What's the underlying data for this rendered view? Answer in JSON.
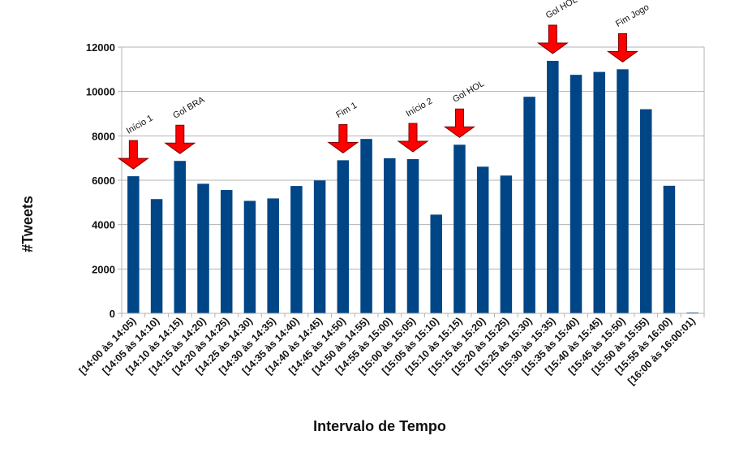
{
  "chart_data": {
    "type": "bar",
    "title": "",
    "xlabel": "Intervalo de Tempo",
    "ylabel": "#Tweets",
    "ylim": [
      0,
      12000
    ],
    "yticks": [
      0,
      2000,
      4000,
      6000,
      8000,
      10000,
      12000
    ],
    "grid": "horizontal",
    "legend": "none",
    "bar_color": "#004586",
    "annotation_color": "#ff0000",
    "categories": [
      "[14:00 às 14:05)",
      "[14:05 às 14:10)",
      "[14:10 às 14:15)",
      "[14:15 às 14:20)",
      "[14:20 às 14:25)",
      "[14:25 às 14:30)",
      "[14:30 às 14:35)",
      "[14:35 às 14:40)",
      "[14:40 às 14:45)",
      "[14:45 às 14:50)",
      "[14:50 às 14:55)",
      "[14:55 às 15:00)",
      "[15:00 às 15:05)",
      "[15:05 às 15:10)",
      "[15:10 às 15:15)",
      "[15:15 às 15:20)",
      "[15:20 às 15:25)",
      "[15:25 às 15:30)",
      "[15:30 às 15:35)",
      "[15:35 às 15:40)",
      "[15:40 às 15:45)",
      "[15:45 às 15:50)",
      "[15:50 às 15:55)",
      "[15:55 às 16:00)",
      "[16:00 às 16:00:01)"
    ],
    "values": [
      6180,
      5150,
      6870,
      5840,
      5560,
      5070,
      5180,
      5740,
      5990,
      6900,
      7860,
      6990,
      6950,
      4450,
      7600,
      6610,
      6210,
      9760,
      11380,
      10750,
      10880,
      11000,
      9200,
      5750,
      40
    ],
    "annotations": [
      {
        "label": "Início 1",
        "category_index": 0
      },
      {
        "label": "Gol BRA",
        "category_index": 2
      },
      {
        "label": "Fim 1",
        "category_index": 9
      },
      {
        "label": "Início 2",
        "category_index": 12
      },
      {
        "label": "Gol HOL",
        "category_index": 14
      },
      {
        "label": "Gol HOL",
        "category_index": 18
      },
      {
        "label": "Fim Jogo",
        "category_index": 21
      }
    ]
  }
}
